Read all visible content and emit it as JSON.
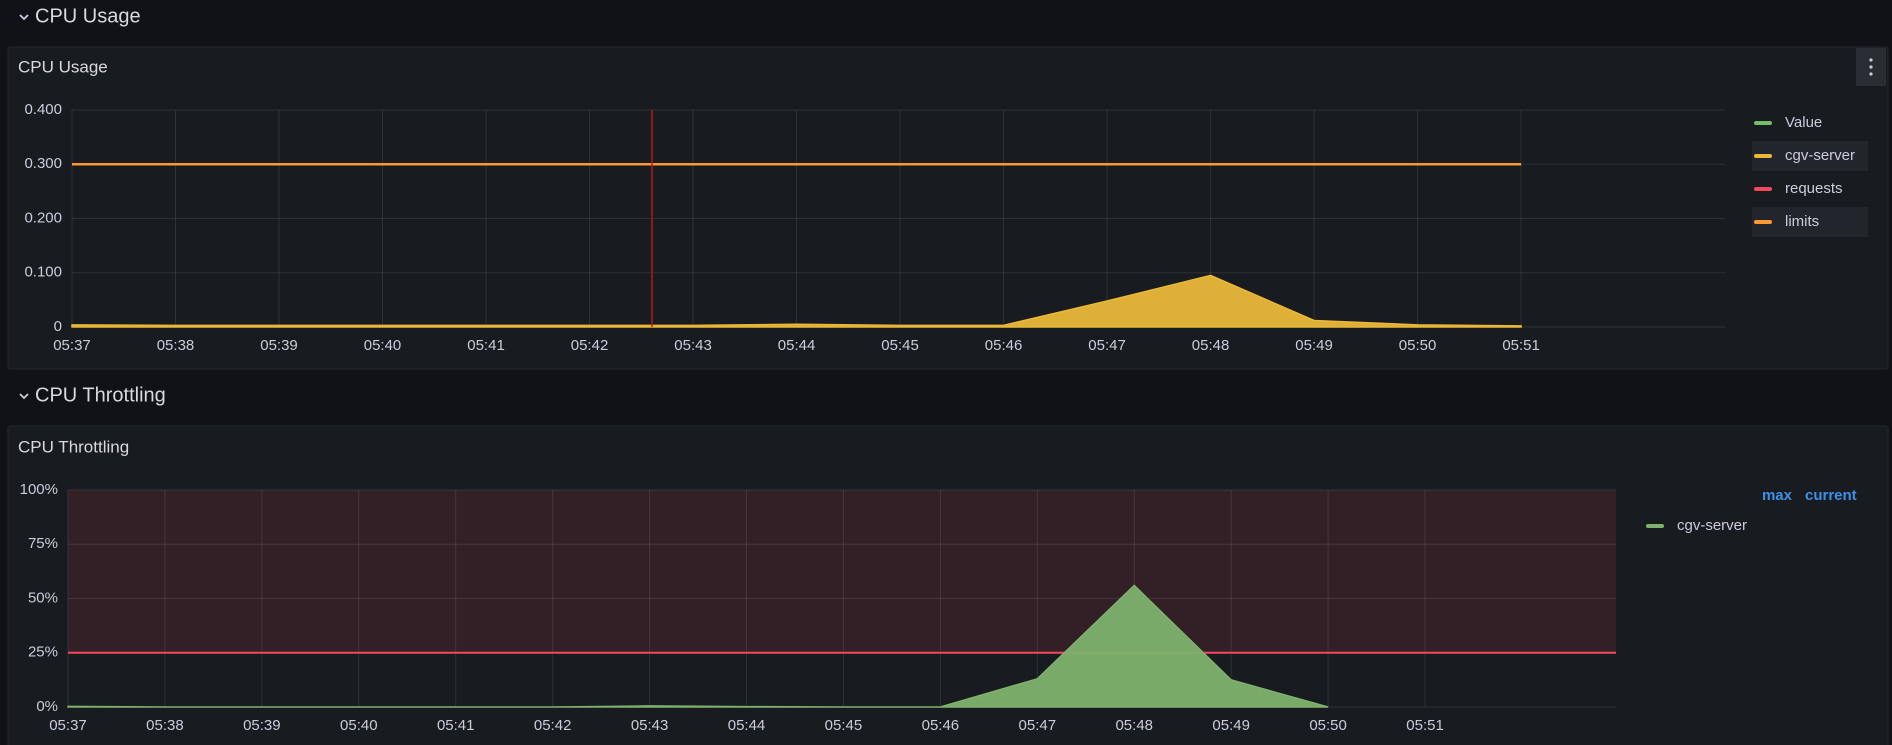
{
  "rows": [
    {
      "title": "CPU Usage"
    },
    {
      "title": "CPU Throttling"
    }
  ],
  "chart_data": [
    {
      "type": "line",
      "title": "CPU Usage",
      "categories": [
        "05:37",
        "05:38",
        "05:39",
        "05:40",
        "05:41",
        "05:42",
        "05:43",
        "05:44",
        "05:45",
        "05:46",
        "05:47",
        "05:48",
        "05:49",
        "05:50",
        "05:51"
      ],
      "ylim": [
        0,
        0.4
      ],
      "yticks": [
        0,
        {
          "value": 0.1,
          "label": "0.100"
        },
        {
          "value": 0.2,
          "label": "0.200"
        },
        {
          "value": 0.3,
          "label": "0.300"
        },
        {
          "value": 0.4,
          "label": "0.400"
        }
      ],
      "grid": true,
      "series": [
        {
          "name": "Value",
          "color": "#73BF69",
          "values": [
            null,
            null,
            null,
            null,
            null,
            null,
            null,
            null,
            null,
            null,
            null,
            null,
            null,
            null,
            null
          ]
        },
        {
          "name": "cgv-server",
          "color": "#EAB839",
          "fill": true,
          "values": [
            0.004,
            0.003,
            0.003,
            0.003,
            0.003,
            0.003,
            0.003,
            0.005,
            0.003,
            0.003,
            0.048,
            0.095,
            0.012,
            0.004,
            0.002
          ]
        },
        {
          "name": "requests",
          "color": "#F2495C",
          "values": [
            null,
            null,
            null,
            null,
            null,
            null,
            null,
            null,
            null,
            null,
            null,
            null,
            null,
            null,
            null
          ]
        },
        {
          "name": "limits",
          "color": "#FF9830",
          "values": [
            0.3,
            0.3,
            0.3,
            0.3,
            0.3,
            0.3,
            0.3,
            0.3,
            0.3,
            0.3,
            0.3,
            0.3,
            0.3,
            0.3,
            0.3
          ]
        }
      ]
    },
    {
      "type": "line",
      "title": "CPU Throttling",
      "categories": [
        "05:37",
        "05:38",
        "05:39",
        "05:40",
        "05:41",
        "05:42",
        "05:43",
        "05:44",
        "05:45",
        "05:46",
        "05:47",
        "05:48",
        "05:49",
        "05:50",
        "05:51"
      ],
      "ylim": [
        0,
        100
      ],
      "yticks": [
        {
          "value": 0,
          "label": "0%"
        },
        {
          "value": 25,
          "label": "25%"
        },
        {
          "value": 50,
          "label": "50%"
        },
        {
          "value": 75,
          "label": "75%"
        },
        {
          "value": 100,
          "label": "100%"
        }
      ],
      "grid": true,
      "threshold": {
        "value": 25,
        "color": "#F2495C"
      },
      "legend_columns": [
        "max",
        "current"
      ],
      "series": [
        {
          "name": "cgv-server",
          "color": "#7EB26D",
          "fill": true,
          "values": [
            0.3,
            0,
            0,
            0,
            0,
            0,
            0.5,
            0.2,
            0,
            0,
            13,
            56,
            12.5,
            0,
            null
          ]
        }
      ]
    }
  ]
}
